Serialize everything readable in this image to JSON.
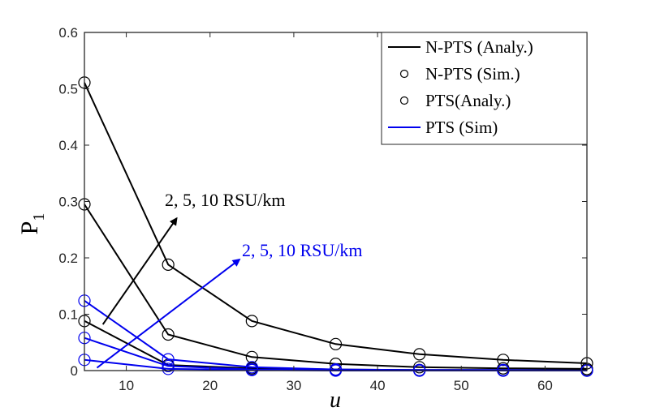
{
  "chart_data": {
    "type": "line",
    "title": "",
    "xlabel": "u",
    "ylabel_main": "P",
    "ylabel_sub": "1",
    "xlim": [
      5,
      65
    ],
    "ylim": [
      0,
      0.6
    ],
    "x_ticks": [
      10,
      20,
      30,
      40,
      50,
      60
    ],
    "y_ticks": [
      0,
      0.1,
      0.2,
      0.3,
      0.4,
      0.5,
      0.6
    ],
    "x": [
      5,
      15,
      25,
      35,
      45,
      55,
      65
    ],
    "colors": {
      "npts": "#000000",
      "pts": "#0000ee",
      "axis": "#262626"
    },
    "series": [
      {
        "name": "N-PTS, 10 RSU/km",
        "group": "npts",
        "values": [
          0.511,
          0.188,
          0.088,
          0.047,
          0.029,
          0.019,
          0.013
        ]
      },
      {
        "name": "N-PTS, 5 RSU/km",
        "group": "npts",
        "values": [
          0.295,
          0.064,
          0.024,
          0.012,
          0.006,
          0.004,
          0.003
        ]
      },
      {
        "name": "N-PTS, 2 RSU/km",
        "group": "npts",
        "values": [
          0.088,
          0.01,
          0.004,
          0.002,
          0.001,
          0.001,
          0.001
        ]
      },
      {
        "name": "PTS, 10 RSU/km",
        "group": "pts",
        "values": [
          0.124,
          0.02,
          0.006,
          0.002,
          0.001,
          0.001,
          0.0
        ]
      },
      {
        "name": "PTS, 5 RSU/km",
        "group": "pts",
        "values": [
          0.058,
          0.008,
          0.002,
          0.001,
          0.0,
          0.0,
          0.0
        ]
      },
      {
        "name": "PTS, 2 RSU/km",
        "group": "pts",
        "values": [
          0.019,
          0.003,
          0.001,
          0.0,
          0.0,
          0.0,
          0.0
        ]
      }
    ],
    "legend": [
      {
        "label": "N-PTS (Analy.)",
        "marker": "line",
        "color": "#000000"
      },
      {
        "label": "N-PTS (Sim.)",
        "marker": "circle",
        "color": "#000000"
      },
      {
        "label": "PTS(Analy.)",
        "marker": "circle",
        "color": "#000000"
      },
      {
        "label": "PTS (Sim)",
        "marker": "line",
        "color": "#0000ee"
      }
    ],
    "annotations": [
      {
        "text": "2, 5, 10 RSU/km",
        "color": "#000000",
        "arrow_from": [
          7.2,
          0.082
        ],
        "arrow_to": [
          16.0,
          0.27
        ]
      },
      {
        "text": "2, 5, 10 RSU/km",
        "color": "#0000ee",
        "arrow_from": [
          6.5,
          0.005
        ],
        "arrow_to": [
          23.5,
          0.197
        ]
      }
    ]
  }
}
